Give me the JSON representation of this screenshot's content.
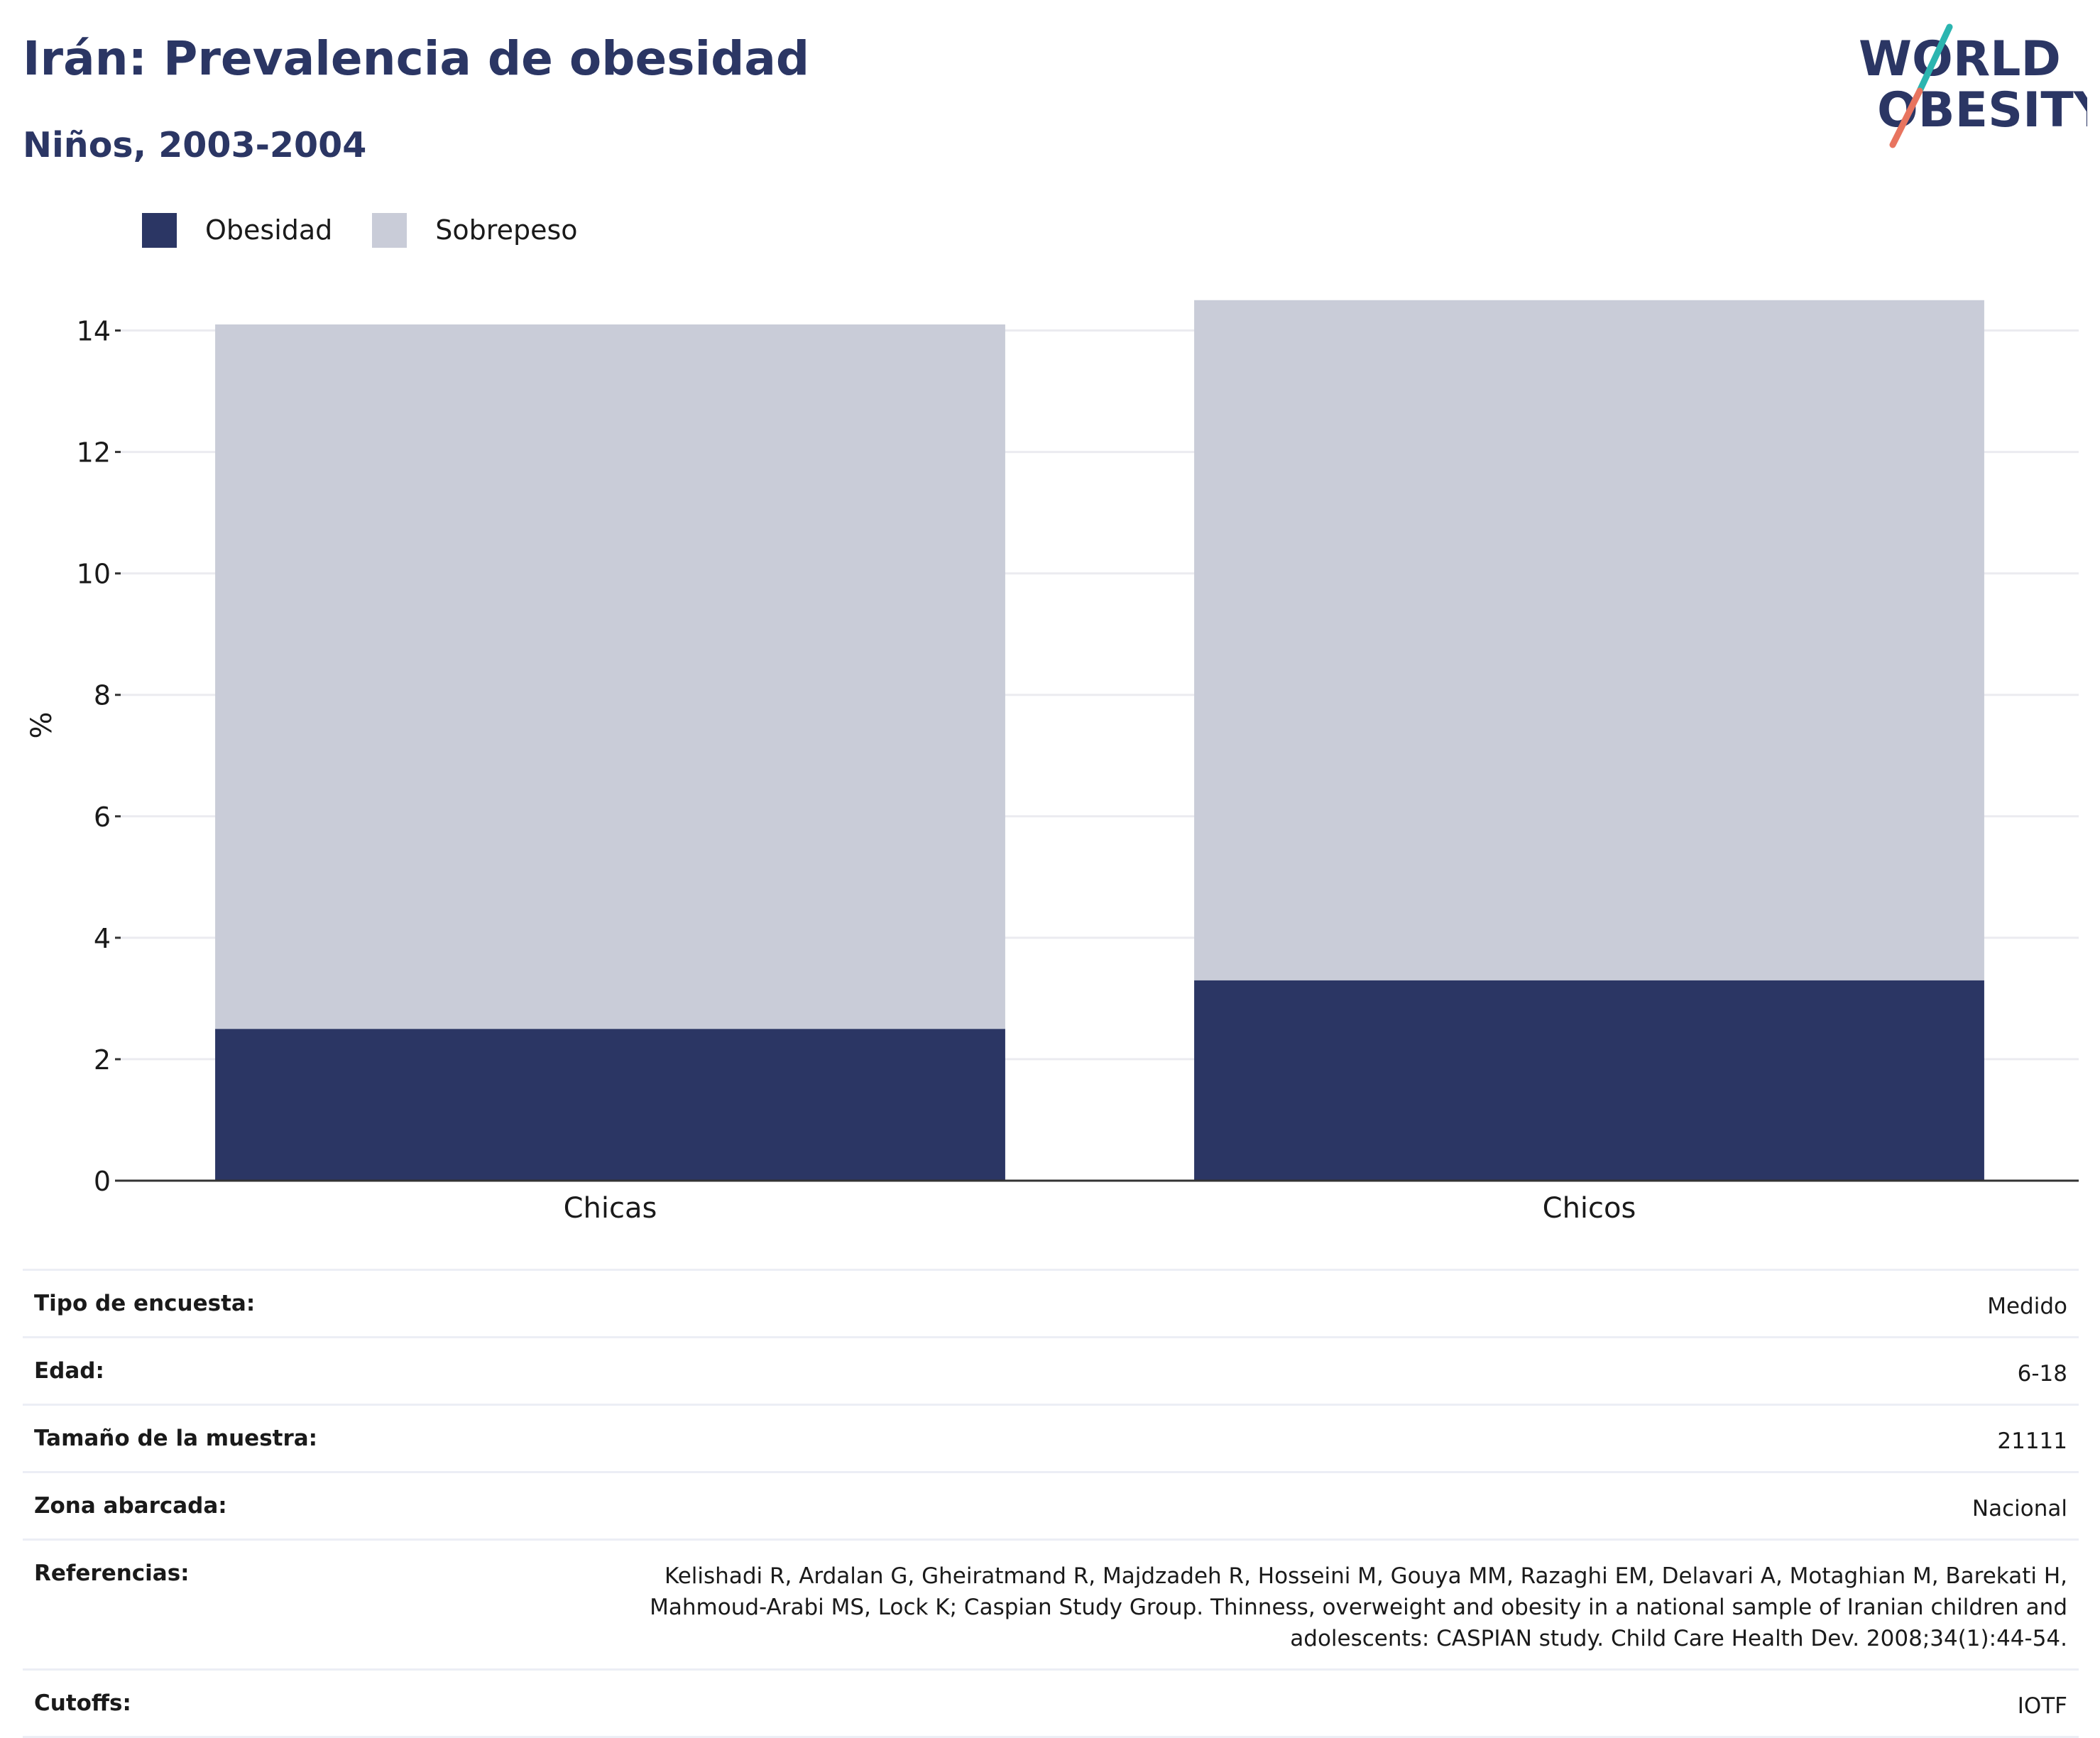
{
  "header": {
    "title": "Irán: Prevalencia de obesidad",
    "subtitle": "Niños, 2003-2004"
  },
  "logo": {
    "line1": "WORLD",
    "line2": "OBESITY"
  },
  "colors": {
    "obesidad": "#2b3664",
    "sobrepeso": "#c9ccd8",
    "title": "#2b3664",
    "logo_teal": "#2bb5b0",
    "logo_coral": "#e8745f",
    "grid": "#ebebf0",
    "axis": "#333333"
  },
  "legend": [
    {
      "label": "Obesidad",
      "color": "#2b3664"
    },
    {
      "label": "Sobrepeso",
      "color": "#c9ccd8"
    }
  ],
  "chart_data": {
    "type": "bar",
    "stacked": true,
    "categories": [
      "Chicas",
      "Chicos"
    ],
    "series": [
      {
        "name": "Obesidad",
        "values": [
          2.5,
          3.3
        ]
      },
      {
        "name": "Sobrepeso",
        "values": [
          11.6,
          11.2
        ]
      }
    ],
    "ylabel": "%",
    "ylim": [
      0,
      15
    ],
    "yticks": [
      0,
      2,
      4,
      6,
      8,
      10,
      12,
      14
    ],
    "grid": true,
    "legend_position": "top-left"
  },
  "meta": [
    {
      "key": "Tipo de encuesta:",
      "value": "Medido"
    },
    {
      "key": "Edad:",
      "value": "6-18"
    },
    {
      "key": "Tamaño de la muestra:",
      "value": "21111"
    },
    {
      "key": "Zona abarcada:",
      "value": "Nacional"
    },
    {
      "key": "Referencias:",
      "value": "Kelishadi R, Ardalan G, Gheiratmand R, Majdzadeh R, Hosseini M, Gouya MM, Razaghi EM, Delavari A, Motaghian M, Barekati H, Mahmoud-Arabi MS, Lock K; Caspian Study Group. Thinness, overweight and obesity in a national sample of Iranian children and adolescents: CASPIAN study. Child Care Health Dev. 2008;34(1):44-54."
    },
    {
      "key": "Cutoffs:",
      "value": "IOTF"
    }
  ]
}
